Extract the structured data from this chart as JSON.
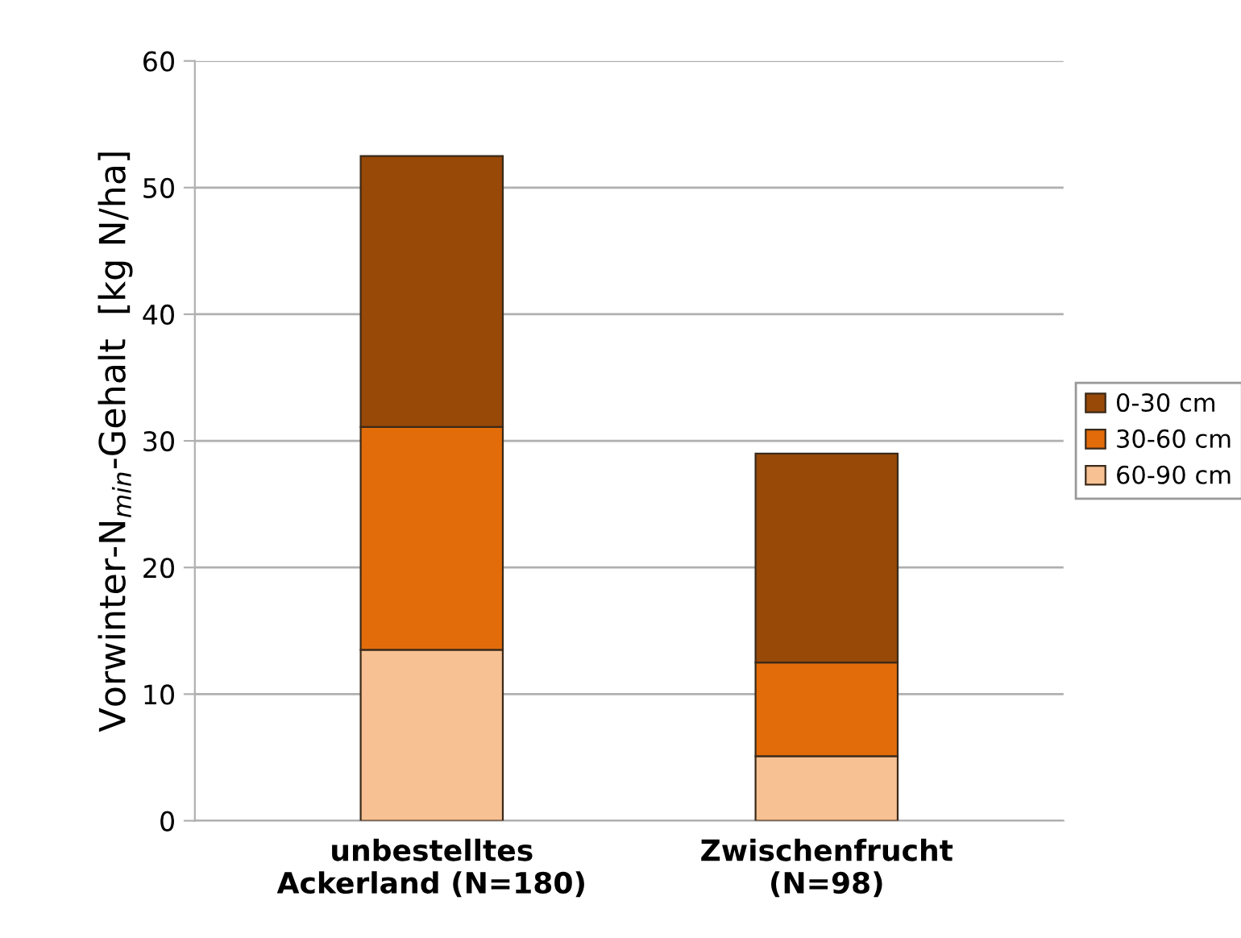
{
  "chart_data": {
    "type": "bar",
    "stacked": true,
    "ylabel": "Vorwinter-N$_{min}$-Gehalt  [kg N/ha]",
    "categories": [
      "unbestelltes\nAckerland (N=180)",
      "Zwischenfrucht\n(N=98)"
    ],
    "series": [
      {
        "name": "60-90 cm",
        "color": "#f8c193",
        "values": [
          13.5,
          5.1
        ]
      },
      {
        "name": "30-60 cm",
        "color": "#e36c0a",
        "values": [
          17.6,
          7.4
        ]
      },
      {
        "name": "0-30 cm",
        "color": "#984807",
        "values": [
          21.4,
          16.5
        ]
      }
    ],
    "ylim": [
      0,
      60
    ],
    "yticks": [
      0,
      10,
      20,
      30,
      40,
      50,
      60
    ],
    "grid": "y",
    "legend": "right"
  }
}
